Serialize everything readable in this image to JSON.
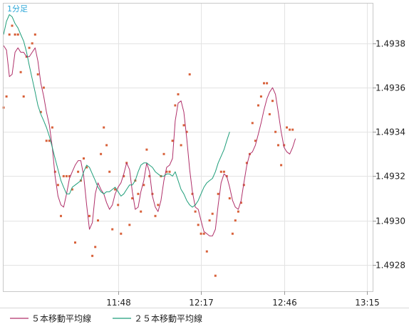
{
  "chart_data": {
    "type": "line",
    "period_label": "1分足",
    "x_tick_labels": [
      "11:48",
      "12:17",
      "12:46",
      "13:15"
    ],
    "y_tick_labels": [
      "1.4928",
      "1.4930",
      "1.4932",
      "1.4934",
      "1.4936",
      "1.4938"
    ],
    "y_ticks": [
      1.4928,
      1.493,
      1.4932,
      1.4934,
      1.4936,
      1.4938
    ],
    "ylim": [
      1.49268,
      1.49398
    ],
    "x_ticks": [
      11.8,
      12.283,
      12.767,
      13.25
    ],
    "xlim": [
      11.133,
      13.283
    ],
    "grid": true,
    "legend_position": "bottom-left",
    "series": [
      {
        "name": "５本移動平均線",
        "color": "#b0306a",
        "points": [
          [
            11.133,
            1.49379
          ],
          [
            11.15,
            1.49377
          ],
          [
            11.167,
            1.49365
          ],
          [
            11.183,
            1.49366
          ],
          [
            11.2,
            1.49376
          ],
          [
            11.217,
            1.49378
          ],
          [
            11.233,
            1.49376
          ],
          [
            11.25,
            1.49376
          ],
          [
            11.267,
            1.49374
          ],
          [
            11.283,
            1.49374
          ],
          [
            11.3,
            1.49376
          ],
          [
            11.317,
            1.49378
          ],
          [
            11.333,
            1.49372
          ],
          [
            11.35,
            1.49362
          ],
          [
            11.367,
            1.49356
          ],
          [
            11.383,
            1.49349
          ],
          [
            11.4,
            1.49343
          ],
          [
            11.417,
            1.49333
          ],
          [
            11.433,
            1.4932
          ],
          [
            11.45,
            1.49311
          ],
          [
            11.467,
            1.49307
          ],
          [
            11.483,
            1.49306
          ],
          [
            11.5,
            1.49312
          ],
          [
            11.517,
            1.49319
          ],
          [
            11.533,
            1.49322
          ],
          [
            11.55,
            1.49325
          ],
          [
            11.567,
            1.49327
          ],
          [
            11.583,
            1.49327
          ],
          [
            11.6,
            1.4932
          ],
          [
            11.617,
            1.49307
          ],
          [
            11.633,
            1.49296
          ],
          [
            11.65,
            1.49299
          ],
          [
            11.667,
            1.49312
          ],
          [
            11.683,
            1.49317
          ],
          [
            11.7,
            1.49314
          ],
          [
            11.717,
            1.49312
          ],
          [
            11.733,
            1.49308
          ],
          [
            11.75,
            1.49305
          ],
          [
            11.767,
            1.49307
          ],
          [
            11.783,
            1.49312
          ],
          [
            11.8,
            1.49315
          ],
          [
            11.817,
            1.49317
          ],
          [
            11.833,
            1.49321
          ],
          [
            11.85,
            1.49326
          ],
          [
            11.867,
            1.49323
          ],
          [
            11.883,
            1.49313
          ],
          [
            11.9,
            1.49305
          ],
          [
            11.917,
            1.49306
          ],
          [
            11.933,
            1.49313
          ],
          [
            11.95,
            1.49318
          ],
          [
            11.967,
            1.49326
          ],
          [
            11.983,
            1.49322
          ],
          [
            12.0,
            1.49311
          ],
          [
            12.017,
            1.49306
          ],
          [
            12.033,
            1.49304
          ],
          [
            12.05,
            1.49309
          ],
          [
            12.067,
            1.49318
          ],
          [
            12.083,
            1.49324
          ],
          [
            12.1,
            1.49325
          ],
          [
            12.117,
            1.49328
          ],
          [
            12.133,
            1.49345
          ],
          [
            12.15,
            1.49353
          ],
          [
            12.167,
            1.49354
          ],
          [
            12.183,
            1.49349
          ],
          [
            12.2,
            1.49337
          ],
          [
            12.217,
            1.49323
          ],
          [
            12.233,
            1.49313
          ],
          [
            12.25,
            1.49306
          ],
          [
            12.267,
            1.49305
          ],
          [
            12.283,
            1.493
          ],
          [
            12.3,
            1.49295
          ],
          [
            12.317,
            1.49294
          ],
          [
            12.333,
            1.49293
          ],
          [
            12.35,
            1.49293
          ],
          [
            12.367,
            1.49296
          ],
          [
            12.383,
            1.49307
          ],
          [
            12.4,
            1.49317
          ],
          [
            12.417,
            1.49321
          ],
          [
            12.433,
            1.4932
          ],
          [
            12.45,
            1.49315
          ],
          [
            12.467,
            1.49309
          ],
          [
            12.483,
            1.49306
          ],
          [
            12.5,
            1.49305
          ],
          [
            12.517,
            1.49309
          ],
          [
            12.533,
            1.49317
          ],
          [
            12.55,
            1.49325
          ],
          [
            12.567,
            1.4933
          ],
          [
            12.583,
            1.49331
          ],
          [
            12.6,
            1.49334
          ],
          [
            12.617,
            1.49339
          ],
          [
            12.633,
            1.49344
          ],
          [
            12.65,
            1.4935
          ],
          [
            12.667,
            1.49355
          ],
          [
            12.683,
            1.49358
          ],
          [
            12.7,
            1.4936
          ],
          [
            12.717,
            1.49357
          ],
          [
            12.733,
            1.49349
          ],
          [
            12.75,
            1.4934
          ],
          [
            12.767,
            1.49333
          ],
          [
            12.783,
            1.49331
          ],
          [
            12.8,
            1.4933
          ],
          [
            12.817,
            1.49333
          ],
          [
            12.833,
            1.49337
          ]
        ]
      },
      {
        "name": "２５本移動平均線",
        "color": "#1f9e7a",
        "points": [
          [
            11.133,
            1.49384
          ],
          [
            11.15,
            1.4939
          ],
          [
            11.167,
            1.49393
          ],
          [
            11.183,
            1.49392
          ],
          [
            11.2,
            1.49389
          ],
          [
            11.217,
            1.49387
          ],
          [
            11.233,
            1.49384
          ],
          [
            11.25,
            1.49381
          ],
          [
            11.267,
            1.49376
          ],
          [
            11.283,
            1.4937
          ],
          [
            11.3,
            1.49364
          ],
          [
            11.317,
            1.49358
          ],
          [
            11.333,
            1.49352
          ],
          [
            11.35,
            1.49348
          ],
          [
            11.367,
            1.49345
          ],
          [
            11.383,
            1.49342
          ],
          [
            11.4,
            1.49338
          ],
          [
            11.417,
            1.49333
          ],
          [
            11.433,
            1.49328
          ],
          [
            11.45,
            1.49323
          ],
          [
            11.467,
            1.49318
          ],
          [
            11.483,
            1.49315
          ],
          [
            11.5,
            1.49312
          ],
          [
            11.517,
            1.49312
          ],
          [
            11.533,
            1.49315
          ],
          [
            11.55,
            1.49316
          ],
          [
            11.567,
            1.49317
          ],
          [
            11.583,
            1.49318
          ],
          [
            11.6,
            1.49322
          ],
          [
            11.617,
            1.49325
          ],
          [
            11.633,
            1.49324
          ],
          [
            11.65,
            1.49321
          ],
          [
            11.667,
            1.49318
          ],
          [
            11.683,
            1.49315
          ],
          [
            11.7,
            1.49313
          ],
          [
            11.717,
            1.49312
          ],
          [
            11.733,
            1.49313
          ],
          [
            11.75,
            1.49313
          ],
          [
            11.767,
            1.49314
          ],
          [
            11.783,
            1.49315
          ],
          [
            11.8,
            1.49313
          ],
          [
            11.817,
            1.49311
          ],
          [
            11.833,
            1.49312
          ],
          [
            11.85,
            1.49314
          ],
          [
            11.867,
            1.49316
          ],
          [
            11.883,
            1.49316
          ],
          [
            11.9,
            1.49318
          ],
          [
            11.917,
            1.49322
          ],
          [
            11.933,
            1.49325
          ],
          [
            11.95,
            1.49326
          ],
          [
            11.967,
            1.49326
          ],
          [
            11.983,
            1.49325
          ],
          [
            12.0,
            1.49324
          ],
          [
            12.017,
            1.49322
          ],
          [
            12.033,
            1.49321
          ],
          [
            12.05,
            1.4932
          ],
          [
            12.067,
            1.4932
          ],
          [
            12.083,
            1.49321
          ],
          [
            12.1,
            1.49321
          ],
          [
            12.117,
            1.4932
          ],
          [
            12.133,
            1.49322
          ],
          [
            12.15,
            1.49318
          ],
          [
            12.167,
            1.49314
          ],
          [
            12.183,
            1.49312
          ],
          [
            12.2,
            1.49309
          ],
          [
            12.217,
            1.49307
          ],
          [
            12.233,
            1.49306
          ],
          [
            12.25,
            1.49307
          ],
          [
            12.267,
            1.49309
          ],
          [
            12.283,
            1.49312
          ],
          [
            12.3,
            1.49315
          ],
          [
            12.317,
            1.49317
          ],
          [
            12.333,
            1.49318
          ],
          [
            12.35,
            1.49319
          ],
          [
            12.367,
            1.49322
          ],
          [
            12.383,
            1.49326
          ],
          [
            12.4,
            1.49329
          ],
          [
            12.417,
            1.49332
          ],
          [
            12.433,
            1.49336
          ],
          [
            12.45,
            1.4934
          ]
        ]
      }
    ],
    "price_dots": [
      [
        11.133,
        1.49351
      ],
      [
        11.15,
        1.49356
      ],
      [
        11.167,
        1.49384
      ],
      [
        11.183,
        1.49388
      ],
      [
        11.2,
        1.49384
      ],
      [
        11.217,
        1.49384
      ],
      [
        11.233,
        1.49367
      ],
      [
        11.25,
        1.49356
      ],
      [
        11.267,
        1.49374
      ],
      [
        11.283,
        1.49378
      ],
      [
        11.3,
        1.4938
      ],
      [
        11.317,
        1.49384
      ],
      [
        11.333,
        1.49366
      ],
      [
        11.35,
        1.49349
      ],
      [
        11.367,
        1.4936
      ],
      [
        11.383,
        1.49336
      ],
      [
        11.4,
        1.49336
      ],
      [
        11.417,
        1.49342
      ],
      [
        11.433,
        1.49322
      ],
      [
        11.45,
        1.49316
      ],
      [
        11.467,
        1.49302
      ],
      [
        11.483,
        1.4932
      ],
      [
        11.5,
        1.4932
      ],
      [
        11.517,
        1.4932
      ],
      [
        11.533,
        1.49314
      ],
      [
        11.55,
        1.4929
      ],
      [
        11.567,
        1.49322
      ],
      [
        11.583,
        1.49318
      ],
      [
        11.6,
        1.49328
      ],
      [
        11.617,
        1.49324
      ],
      [
        11.633,
        1.49302
      ],
      [
        11.65,
        1.49284
      ],
      [
        11.667,
        1.49288
      ],
      [
        11.683,
        1.493
      ],
      [
        11.7,
        1.4933
      ],
      [
        11.717,
        1.49342
      ],
      [
        11.733,
        1.49334
      ],
      [
        11.75,
        1.49322
      ],
      [
        11.767,
        1.49296
      ],
      [
        11.783,
        1.49314
      ],
      [
        11.8,
        1.49307
      ],
      [
        11.817,
        1.49294
      ],
      [
        11.833,
        1.4932
      ],
      [
        11.85,
        1.49326
      ],
      [
        11.867,
        1.49298
      ],
      [
        11.883,
        1.4931
      ],
      [
        11.9,
        1.49318
      ],
      [
        11.917,
        1.49312
      ],
      [
        11.933,
        1.49304
      ],
      [
        11.95,
        1.49316
      ],
      [
        11.967,
        1.49332
      ],
      [
        11.983,
        1.4932
      ],
      [
        12.0,
        1.49312
      ],
      [
        12.017,
        1.49302
      ],
      [
        12.033,
        1.49307
      ],
      [
        12.05,
        1.4932
      ],
      [
        12.067,
        1.4933
      ],
      [
        12.083,
        1.49322
      ],
      [
        12.1,
        1.49322
      ],
      [
        12.117,
        1.49336
      ],
      [
        12.133,
        1.49352
      ],
      [
        12.15,
        1.49357
      ],
      [
        12.167,
        1.49334
      ],
      [
        12.183,
        1.49343
      ],
      [
        12.2,
        1.4934
      ],
      [
        12.217,
        1.49366
      ],
      [
        12.233,
        1.49312
      ],
      [
        12.25,
        1.49304
      ],
      [
        12.267,
        1.49298
      ],
      [
        12.283,
        1.49294
      ],
      [
        12.3,
        1.49294
      ],
      [
        12.317,
        1.49286
      ],
      [
        12.333,
        1.493
      ],
      [
        12.35,
        1.49303
      ],
      [
        12.367,
        1.49275
      ],
      [
        12.383,
        1.49312
      ],
      [
        12.4,
        1.49322
      ],
      [
        12.417,
        1.49322
      ],
      [
        12.433,
        1.4932
      ],
      [
        12.45,
        1.4931
      ],
      [
        12.467,
        1.49294
      ],
      [
        12.483,
        1.493
      ],
      [
        12.5,
        1.49304
      ],
      [
        12.517,
        1.49308
      ],
      [
        12.533,
        1.49316
      ],
      [
        12.55,
        1.49326
      ],
      [
        12.567,
        1.4933
      ],
      [
        12.583,
        1.49344
      ],
      [
        12.6,
        1.49336
      ],
      [
        12.617,
        1.49352
      ],
      [
        12.633,
        1.49356
      ],
      [
        12.65,
        1.49362
      ],
      [
        12.667,
        1.49362
      ],
      [
        12.683,
        1.49348
      ],
      [
        12.7,
        1.49354
      ],
      [
        12.717,
        1.4934
      ],
      [
        12.733,
        1.49334
      ],
      [
        12.75,
        1.49325
      ],
      [
        12.767,
        1.49334
      ],
      [
        12.783,
        1.49342
      ],
      [
        12.8,
        1.49341
      ],
      [
        12.817,
        1.49341
      ]
    ]
  }
}
